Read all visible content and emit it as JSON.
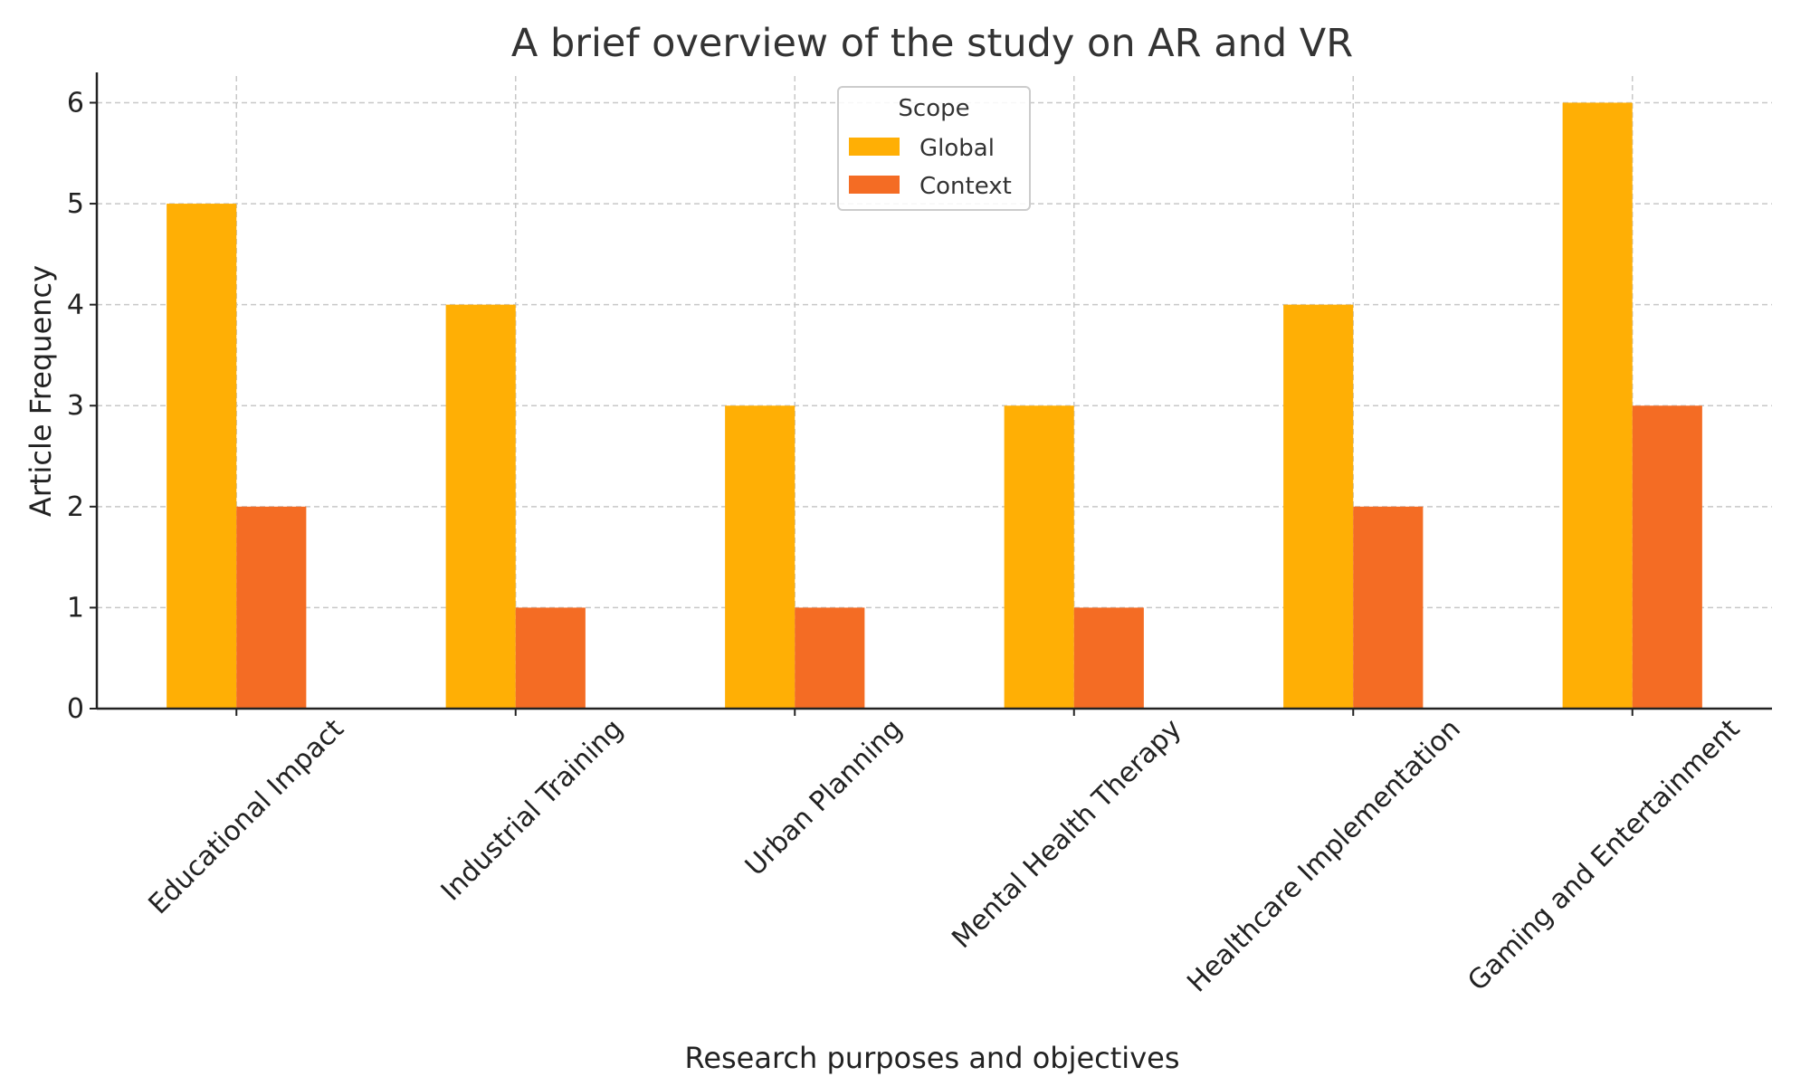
{
  "chart_data": {
    "type": "bar",
    "title": "A brief overview of the study on AR and VR",
    "xlabel": "Research purposes and objectives",
    "ylabel": "Article Frequency",
    "categories": [
      "Educational Impact",
      "Industrial Training",
      "Urban Planning",
      "Mental Health Therapy",
      "Healthcare Implementation",
      "Gaming and Entertainment"
    ],
    "series": [
      {
        "name": "Global",
        "values": [
          5,
          4,
          3,
          3,
          4,
          6
        ],
        "color": "#FFAF05"
      },
      {
        "name": "Context",
        "values": [
          2,
          1,
          1,
          1,
          2,
          3
        ],
        "color": "#F46C24"
      }
    ],
    "ylim": [
      0,
      6.3
    ],
    "yticks": [
      "0",
      "1",
      "2",
      "3",
      "4",
      "5",
      "6"
    ],
    "grid": true,
    "legend": {
      "title": "Scope",
      "entries": [
        "Global",
        "Context"
      ],
      "placement": "top-center"
    }
  }
}
